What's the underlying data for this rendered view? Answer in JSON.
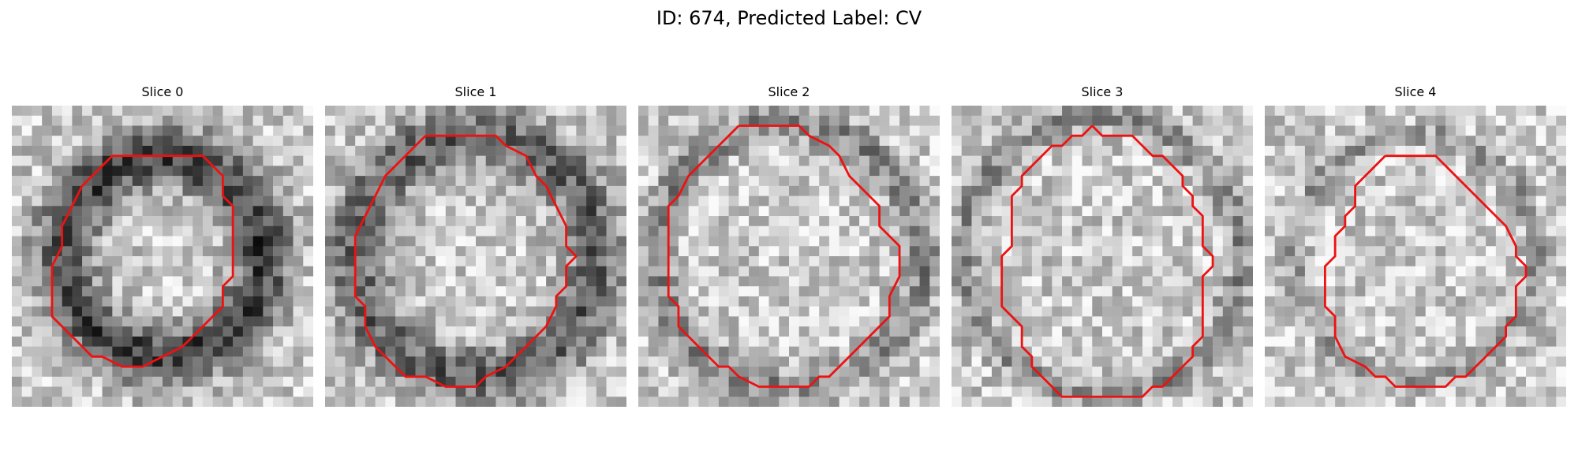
{
  "figure": {
    "title": "ID: 674, Predicted Label: CV"
  },
  "panels": [
    {
      "label": "Slice 0",
      "seed": 11,
      "ring": {
        "radius": 0.33,
        "width": 0.1,
        "darkness": 0.55
      },
      "contour": [
        [
          15,
          5
        ],
        [
          19,
          5
        ],
        [
          20,
          6
        ],
        [
          21,
          7
        ],
        [
          21,
          9
        ],
        [
          22,
          10
        ],
        [
          22,
          14
        ],
        [
          22,
          17
        ],
        [
          21,
          18
        ],
        [
          21,
          20
        ],
        [
          19,
          22
        ],
        [
          17,
          24
        ],
        [
          15,
          25
        ],
        [
          13,
          26
        ],
        [
          11,
          26
        ],
        [
          9,
          25
        ],
        [
          8,
          25
        ],
        [
          6,
          23
        ],
        [
          4,
          21
        ],
        [
          4,
          19
        ],
        [
          4,
          16
        ],
        [
          5,
          14
        ],
        [
          5,
          12
        ],
        [
          6,
          10
        ],
        [
          7,
          8
        ],
        [
          8,
          7
        ],
        [
          9,
          6
        ],
        [
          10,
          5
        ],
        [
          15,
          5
        ]
      ],
      "contour_color": "#ee1111"
    },
    {
      "label": "Slice 1",
      "seed": 23,
      "ring": {
        "radius": 0.4,
        "width": 0.1,
        "darkness": 0.42
      },
      "contour": [
        [
          10,
          3
        ],
        [
          17,
          3
        ],
        [
          18,
          4
        ],
        [
          20,
          5
        ],
        [
          21,
          7
        ],
        [
          22,
          8
        ],
        [
          23,
          10
        ],
        [
          24,
          12
        ],
        [
          24,
          14
        ],
        [
          25,
          15
        ],
        [
          24,
          16
        ],
        [
          24,
          18
        ],
        [
          23,
          19
        ],
        [
          23,
          20
        ],
        [
          22,
          22
        ],
        [
          20,
          24
        ],
        [
          18,
          26
        ],
        [
          16,
          27
        ],
        [
          15,
          28
        ],
        [
          12,
          28
        ],
        [
          10,
          27
        ],
        [
          8,
          27
        ],
        [
          6,
          25
        ],
        [
          5,
          24
        ],
        [
          4,
          22
        ],
        [
          4,
          20
        ],
        [
          3,
          19
        ],
        [
          3,
          13
        ],
        [
          4,
          11
        ],
        [
          5,
          9
        ],
        [
          6,
          7
        ],
        [
          7,
          6
        ],
        [
          8,
          5
        ],
        [
          9,
          4
        ],
        [
          10,
          3
        ]
      ],
      "contour_color": "#ee1111"
    },
    {
      "label": "Slice 2",
      "seed": 37,
      "ring": {
        "radius": 0.44,
        "width": 0.06,
        "darkness": 0.28
      },
      "contour": [
        [
          10,
          2
        ],
        [
          16,
          2
        ],
        [
          17,
          3
        ],
        [
          19,
          4
        ],
        [
          20,
          5
        ],
        [
          21,
          7
        ],
        [
          23,
          9
        ],
        [
          24,
          10
        ],
        [
          24,
          12
        ],
        [
          25,
          13
        ],
        [
          26,
          14
        ],
        [
          26,
          17
        ],
        [
          25,
          19
        ],
        [
          25,
          21
        ],
        [
          24,
          22
        ],
        [
          23,
          23
        ],
        [
          22,
          24
        ],
        [
          21,
          25
        ],
        [
          19,
          27
        ],
        [
          18,
          27
        ],
        [
          17,
          28
        ],
        [
          12,
          28
        ],
        [
          10,
          27
        ],
        [
          9,
          26
        ],
        [
          8,
          26
        ],
        [
          7,
          25
        ],
        [
          6,
          24
        ],
        [
          4,
          22
        ],
        [
          4,
          20
        ],
        [
          3,
          19
        ],
        [
          3,
          10
        ],
        [
          4,
          9
        ],
        [
          5,
          7
        ],
        [
          6,
          6
        ],
        [
          7,
          5
        ],
        [
          8,
          4
        ],
        [
          9,
          3
        ],
        [
          10,
          2
        ]
      ],
      "contour_color": "#ee1111"
    },
    {
      "label": "Slice 3",
      "seed": 53,
      "ring": {
        "radius": 0.46,
        "width": 0.05,
        "darkness": 0.25
      },
      "contour": [
        [
          14,
          2
        ],
        [
          15,
          3
        ],
        [
          18,
          3
        ],
        [
          19,
          4
        ],
        [
          20,
          5
        ],
        [
          21,
          5
        ],
        [
          22,
          6
        ],
        [
          23,
          7
        ],
        [
          23,
          8
        ],
        [
          24,
          9
        ],
        [
          24,
          10
        ],
        [
          25,
          11
        ],
        [
          25,
          12
        ],
        [
          25,
          13
        ],
        [
          25,
          14
        ],
        [
          26,
          15
        ],
        [
          26,
          16
        ],
        [
          25,
          17
        ],
        [
          25,
          23
        ],
        [
          24,
          24
        ],
        [
          24,
          25
        ],
        [
          23,
          26
        ],
        [
          22,
          27
        ],
        [
          21,
          28
        ],
        [
          20,
          28
        ],
        [
          19,
          29
        ],
        [
          11,
          29
        ],
        [
          10,
          28
        ],
        [
          9,
          27
        ],
        [
          8,
          26
        ],
        [
          8,
          25
        ],
        [
          7,
          24
        ],
        [
          7,
          22
        ],
        [
          6,
          21
        ],
        [
          5,
          20
        ],
        [
          5,
          15
        ],
        [
          6,
          14
        ],
        [
          6,
          9
        ],
        [
          7,
          8
        ],
        [
          7,
          7
        ],
        [
          8,
          6
        ],
        [
          9,
          5
        ],
        [
          10,
          4
        ],
        [
          11,
          4
        ],
        [
          12,
          3
        ],
        [
          13,
          3
        ],
        [
          14,
          2
        ]
      ],
      "contour_color": "#ee1111"
    },
    {
      "label": "Slice 4",
      "seed": 71,
      "ring": {
        "radius": 0.4,
        "width": 0.04,
        "darkness": 0.2
      },
      "contour": [
        [
          12,
          5
        ],
        [
          17,
          5
        ],
        [
          18,
          6
        ],
        [
          19,
          7
        ],
        [
          20,
          8
        ],
        [
          21,
          9
        ],
        [
          22,
          10
        ],
        [
          23,
          11
        ],
        [
          24,
          12
        ],
        [
          25,
          14
        ],
        [
          25,
          15
        ],
        [
          26,
          16
        ],
        [
          26,
          17
        ],
        [
          25,
          18
        ],
        [
          25,
          21
        ],
        [
          24,
          22
        ],
        [
          24,
          23
        ],
        [
          23,
          24
        ],
        [
          22,
          25
        ],
        [
          21,
          26
        ],
        [
          20,
          27
        ],
        [
          19,
          27
        ],
        [
          18,
          28
        ],
        [
          13,
          28
        ],
        [
          12,
          27
        ],
        [
          11,
          27
        ],
        [
          10,
          26
        ],
        [
          8,
          25
        ],
        [
          7,
          23
        ],
        [
          7,
          21
        ],
        [
          6,
          20
        ],
        [
          6,
          17
        ],
        [
          6,
          16
        ],
        [
          7,
          15
        ],
        [
          7,
          13
        ],
        [
          8,
          12
        ],
        [
          8,
          11
        ],
        [
          9,
          10
        ],
        [
          9,
          8
        ],
        [
          10,
          7
        ],
        [
          11,
          6
        ],
        [
          12,
          5
        ]
      ],
      "contour_color": "#ee1111"
    }
  ]
}
